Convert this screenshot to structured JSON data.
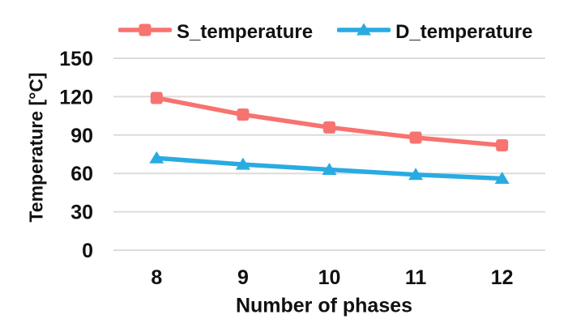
{
  "chart_data": {
    "type": "line",
    "title": "",
    "x": [
      8,
      9,
      10,
      11,
      12
    ],
    "xlabel": "Number of phases",
    "ylabel": "Temperature [°C]",
    "ylim": [
      0,
      150
    ],
    "yticks": [
      0,
      30,
      60,
      90,
      120,
      150
    ],
    "grid": "horizontal-only",
    "gridline_color": "#DCDCDC",
    "text_color": "#111111",
    "legend_position": "top-center",
    "series": [
      {
        "name": "S_temperature",
        "color": "#F7736F",
        "marker": "square",
        "values": [
          119,
          106,
          96,
          88,
          82
        ]
      },
      {
        "name": "D_temperature",
        "color": "#29ABE2",
        "marker": "triangle",
        "values": [
          72,
          67,
          63,
          59,
          56
        ]
      }
    ]
  }
}
